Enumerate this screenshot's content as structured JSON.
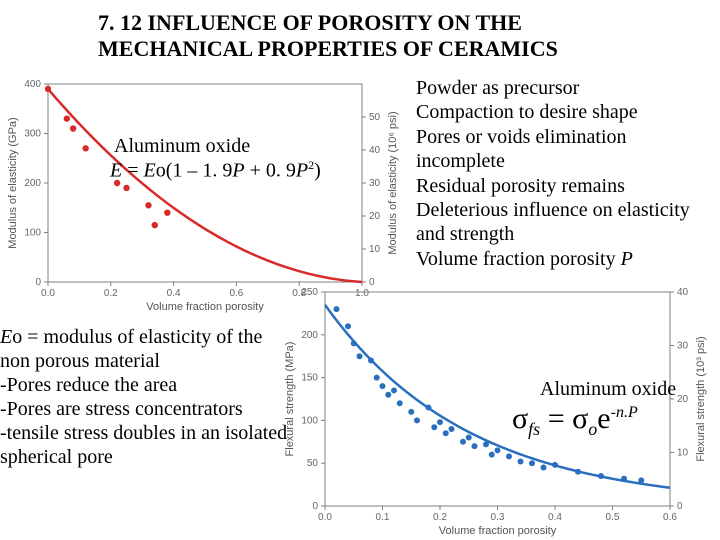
{
  "title_line1": "7. 12  INFLUENCE OF POROSITY ON THE",
  "title_line2": "MECHANICAL PROPERTIES OF CERAMICS",
  "chart1": {
    "type": "scatter+line",
    "material_label": "Aluminum oxide",
    "equation_html": "<span class='ital'>E</span> = <span class='ital'>E</span>o(1 – 1. 9<span class='ital'>P</span> + 0. 9<span class='ital'>P</span><span class='sup'>2</span>)",
    "xlabel": "Volume fraction porosity",
    "ylabel_left": "Modulus of elasticity (GPa)",
    "ylabel_right": "Modulus of elasticity (10⁶ psi)",
    "xlim": [
      0.0,
      1.0
    ],
    "ylim_left": [
      0,
      400
    ],
    "ylim_right": [
      0,
      60
    ],
    "xticks": [
      0.0,
      0.2,
      0.4,
      0.6,
      0.8,
      1.0
    ],
    "yticks_left": [
      0,
      100,
      200,
      300,
      400
    ],
    "yticks_right": [
      0,
      10,
      20,
      30,
      40,
      50
    ],
    "background_color": "#ffffff",
    "axis_color": "#808080",
    "grid_color": "#e6e6e6",
    "curve_color": "#d82a2a",
    "curve_width": 2.5,
    "point_color": "#d82a2a",
    "point_radius": 3.2,
    "points_xy_gpa": [
      [
        0.0,
        390
      ],
      [
        0.06,
        330
      ],
      [
        0.08,
        310
      ],
      [
        0.12,
        270
      ],
      [
        0.22,
        200
      ],
      [
        0.25,
        190
      ],
      [
        0.32,
        155
      ],
      [
        0.34,
        115
      ],
      [
        0.38,
        140
      ]
    ],
    "curve_samples": 40
  },
  "chart2": {
    "type": "scatter+line",
    "material_label": "Aluminum oxide",
    "equation_html": "σ<span class='sub'>fs</span> = σ<span class='sub'>o</span>e<span class='sup'>-n.P</span>",
    "xlabel": "Volume fraction porosity",
    "ylabel_left": "Flexural strength (MPa)",
    "ylabel_right": "Flexural strength (10³ psi)",
    "xlim": [
      0.0,
      0.6
    ],
    "ylim_left": [
      0,
      250
    ],
    "ylim_right": [
      0,
      40
    ],
    "xticks": [
      0.0,
      0.1,
      0.2,
      0.3,
      0.4,
      0.5,
      0.6
    ],
    "yticks_left": [
      0,
      50,
      100,
      150,
      200,
      250
    ],
    "yticks_right": [
      0,
      10,
      20,
      30,
      40
    ],
    "background_color": "#ffffff",
    "axis_color": "#808080",
    "grid_color": "#e6e6e6",
    "curve_color": "#2a6fbf",
    "curve_width": 2.5,
    "point_color": "#2a6fbf",
    "point_radius": 3.0,
    "points_xy_mpa": [
      [
        0.02,
        230
      ],
      [
        0.04,
        210
      ],
      [
        0.05,
        190
      ],
      [
        0.06,
        175
      ],
      [
        0.08,
        170
      ],
      [
        0.09,
        150
      ],
      [
        0.1,
        140
      ],
      [
        0.11,
        130
      ],
      [
        0.12,
        135
      ],
      [
        0.13,
        120
      ],
      [
        0.15,
        110
      ],
      [
        0.16,
        100
      ],
      [
        0.18,
        115
      ],
      [
        0.19,
        92
      ],
      [
        0.2,
        98
      ],
      [
        0.21,
        85
      ],
      [
        0.22,
        90
      ],
      [
        0.24,
        75
      ],
      [
        0.25,
        80
      ],
      [
        0.26,
        70
      ],
      [
        0.28,
        72
      ],
      [
        0.29,
        60
      ],
      [
        0.3,
        65
      ],
      [
        0.32,
        58
      ],
      [
        0.34,
        52
      ],
      [
        0.36,
        50
      ],
      [
        0.38,
        45
      ],
      [
        0.4,
        48
      ],
      [
        0.44,
        40
      ],
      [
        0.48,
        35
      ],
      [
        0.52,
        32
      ],
      [
        0.55,
        30
      ]
    ],
    "exp_sigma0": 235,
    "exp_n": 4.0,
    "curve_samples": 50
  },
  "bullets": [
    "Powder as precursor",
    "Compaction to desire shape",
    "Pores or voids elimination incomplete",
    "Residual porosity remains",
    "Deleterious influence on elasticity and strength",
    "Volume fraction porosity <span class='ital'>P</span>"
  ],
  "left_notes_html": "<span class='ital'>E</span>o = modulus of elasticity of the non porous material<br>-Pores reduce the area<br>-Pores are stress concentrators<br>-tensile stress doubles in an isolated spherical pore"
}
